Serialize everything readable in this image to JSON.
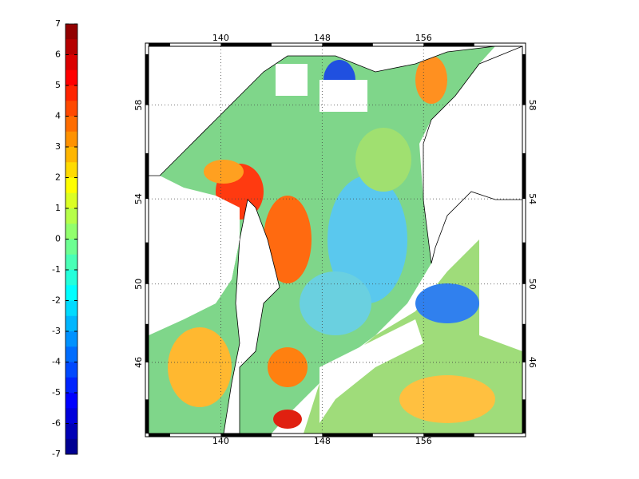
{
  "map": {
    "colorbar": {
      "colormap": "jet",
      "lim": [
        -7,
        7
      ],
      "ticks": [
        -7,
        -6,
        -5,
        -4,
        -3,
        -2,
        -1,
        0,
        1,
        2,
        3,
        4,
        5,
        6,
        7
      ]
    },
    "lonlim": [
      134.3,
      163.8
    ],
    "latlim": [
      42.1,
      60.3
    ],
    "lon_ticks": [
      140,
      148,
      156
    ],
    "lat_ticks": [
      46,
      50,
      54,
      58
    ],
    "grid": true
  }
}
